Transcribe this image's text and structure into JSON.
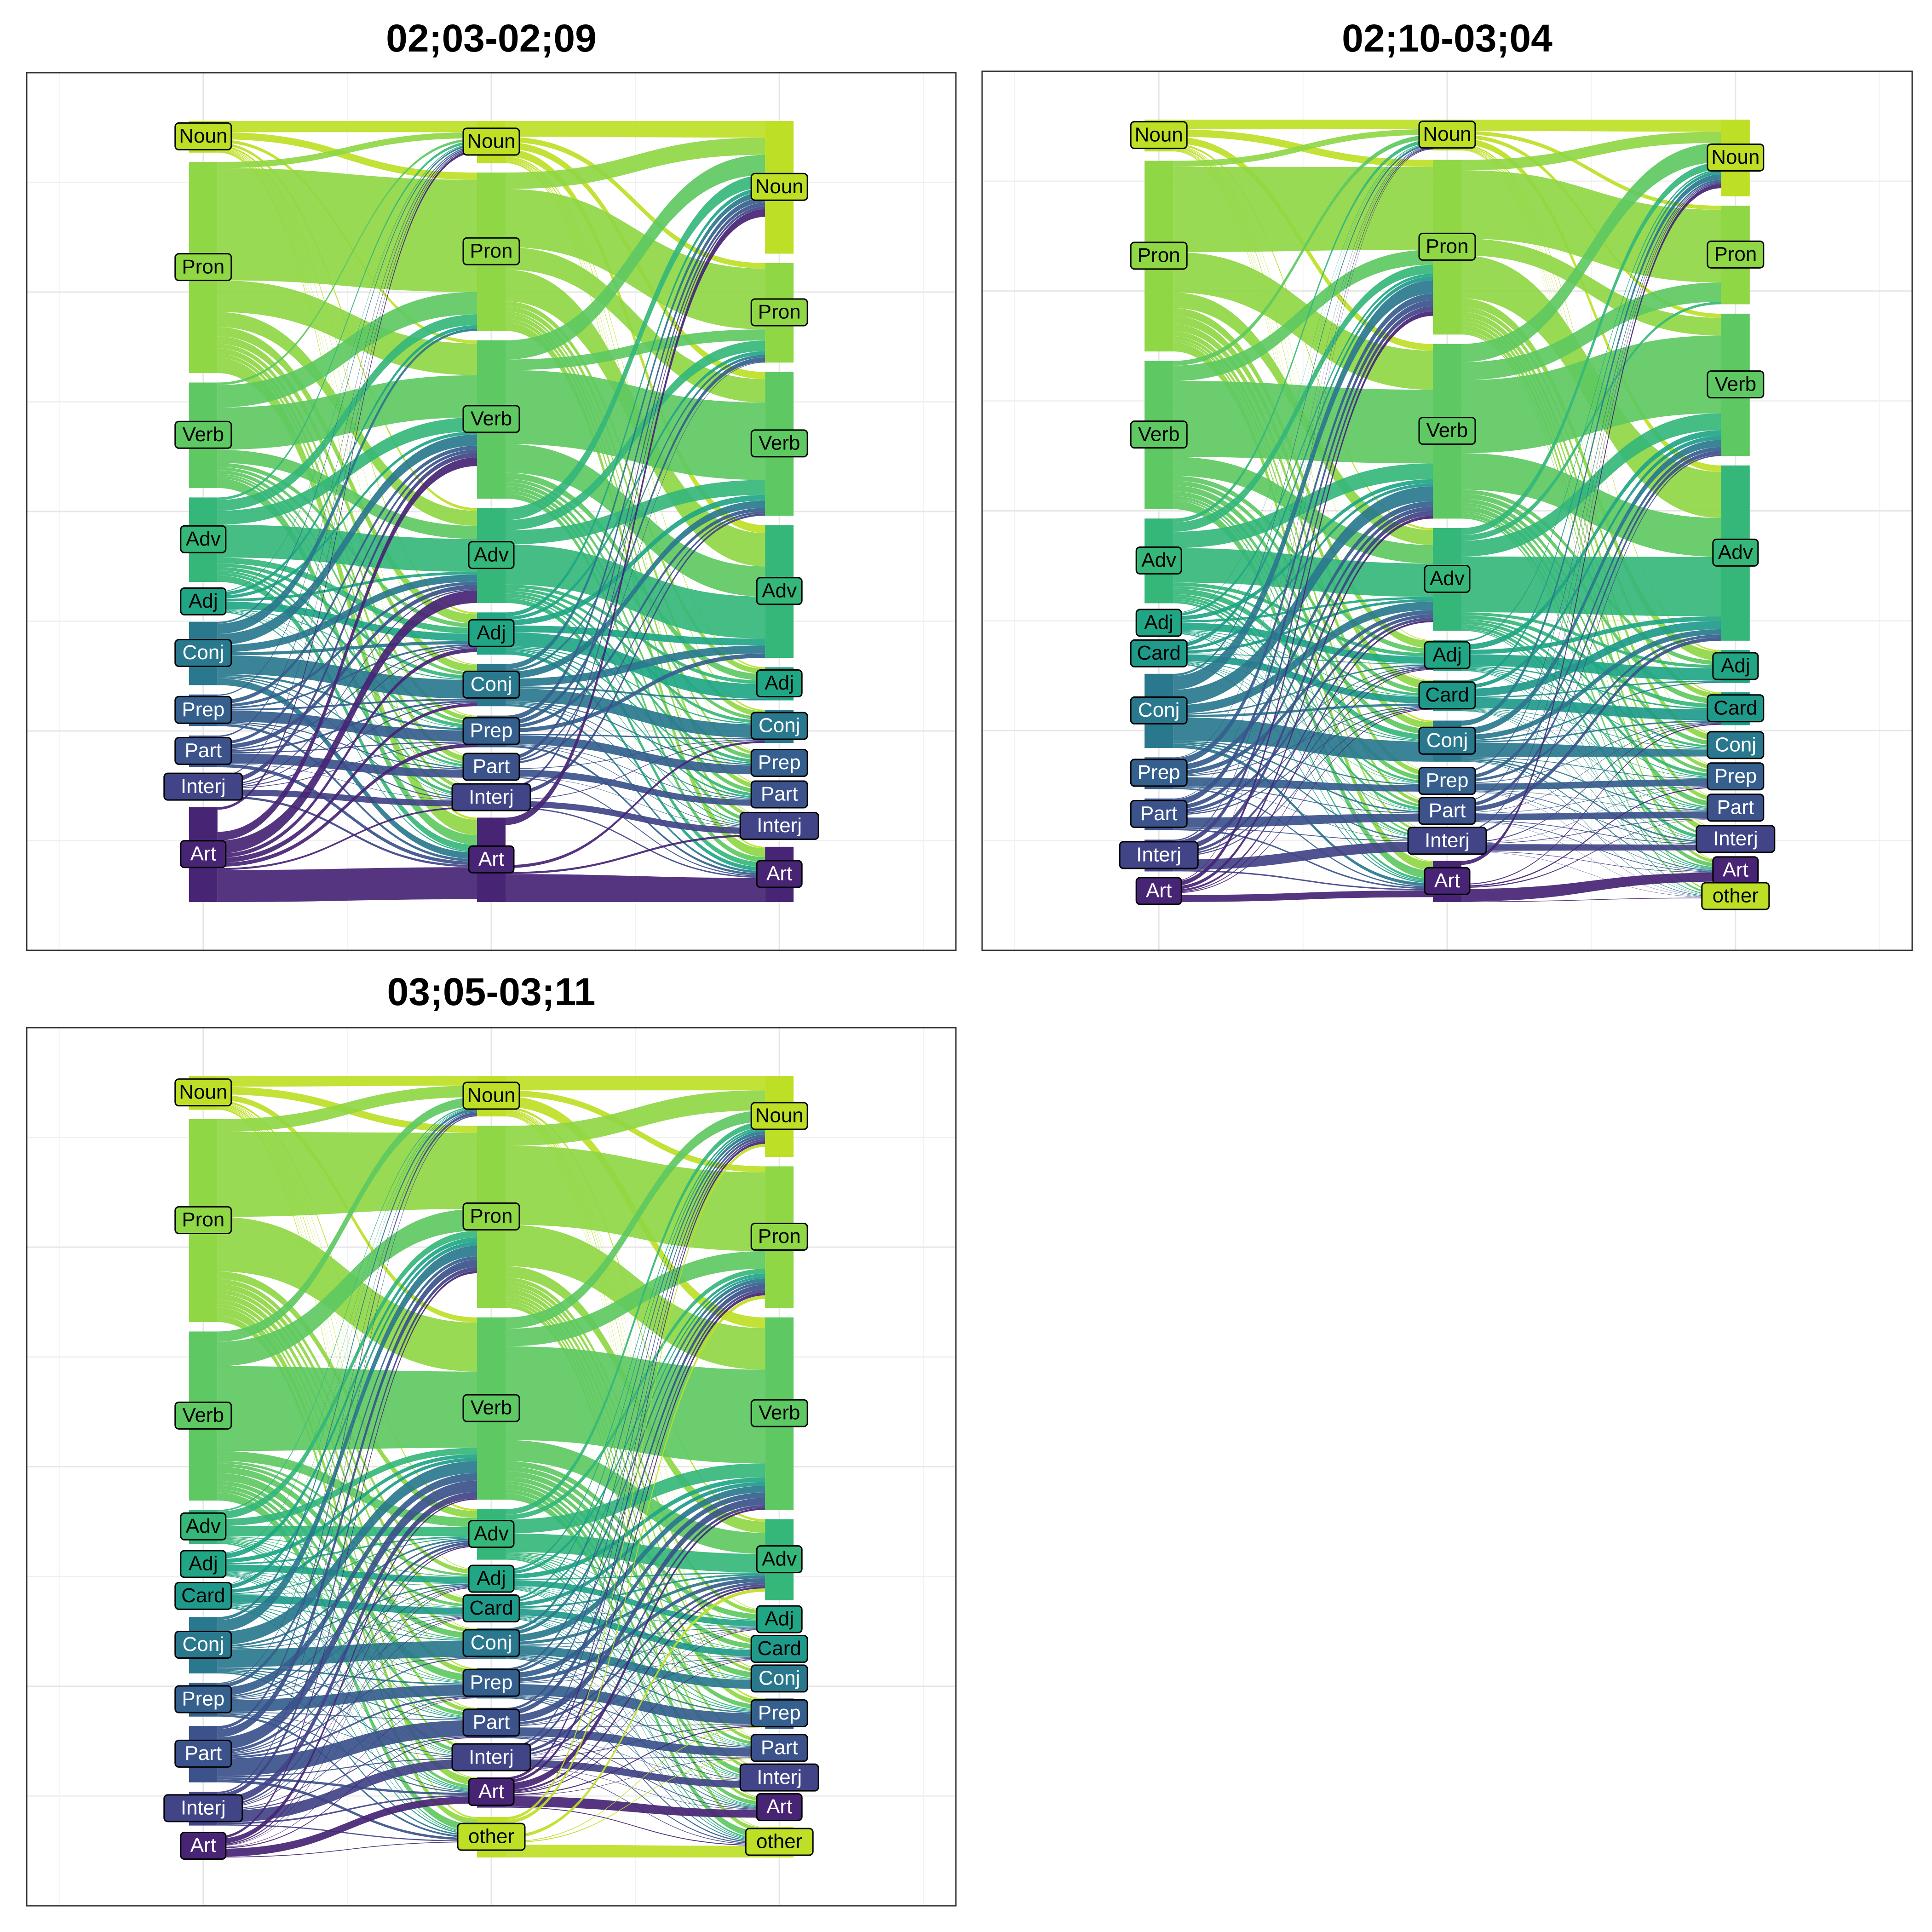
{
  "colors": {
    "Noun": "#bddf26",
    "Pron": "#8fd744",
    "Verb": "#5ec962",
    "Adv": "#35b779",
    "Adj": "#21a685",
    "Card": "#1f9a8a",
    "Conj": "#2a788e",
    "Prep": "#355f8d",
    "Part": "#3b528b",
    "Interj": "#414487",
    "Art": "#482475",
    "other": "#bddf26"
  },
  "chart_data": [
    {
      "type": "alluvial",
      "title": "02;03-02;09",
      "axes": 3,
      "grid": true,
      "nodes": [
        {
          "axis": 1,
          "label": "Noun",
          "size": 3
        },
        {
          "axis": 1,
          "label": "Pron",
          "size": 20
        },
        {
          "axis": 1,
          "label": "Verb",
          "size": 10
        },
        {
          "axis": 1,
          "label": "Adv",
          "size": 8
        },
        {
          "axis": 1,
          "label": "Adj",
          "size": 2
        },
        {
          "axis": 1,
          "label": "Conj",
          "size": 6
        },
        {
          "axis": 1,
          "label": "Prep",
          "size": 3
        },
        {
          "axis": 1,
          "label": "Part",
          "size": 3
        },
        {
          "axis": 1,
          "label": "Interj",
          "size": 2
        },
        {
          "axis": 1,
          "label": "Art",
          "size": 9
        },
        {
          "axis": 2,
          "label": "Noun",
          "size": 4
        },
        {
          "axis": 2,
          "label": "Pron",
          "size": 15
        },
        {
          "axis": 2,
          "label": "Verb",
          "size": 15
        },
        {
          "axis": 2,
          "label": "Adv",
          "size": 9
        },
        {
          "axis": 2,
          "label": "Adj",
          "size": 4
        },
        {
          "axis": 2,
          "label": "Conj",
          "size": 4
        },
        {
          "axis": 2,
          "label": "Prep",
          "size": 3
        },
        {
          "axis": 2,
          "label": "Part",
          "size": 2
        },
        {
          "axis": 2,
          "label": "Interj",
          "size": 2
        },
        {
          "axis": 2,
          "label": "Art",
          "size": 8
        },
        {
          "axis": 3,
          "label": "Noun",
          "size": 12
        },
        {
          "axis": 3,
          "label": "Pron",
          "size": 9
        },
        {
          "axis": 3,
          "label": "Verb",
          "size": 13
        },
        {
          "axis": 3,
          "label": "Adv",
          "size": 12
        },
        {
          "axis": 3,
          "label": "Adj",
          "size": 3
        },
        {
          "axis": 3,
          "label": "Conj",
          "size": 3
        },
        {
          "axis": 3,
          "label": "Prep",
          "size": 2
        },
        {
          "axis": 3,
          "label": "Part",
          "size": 2
        },
        {
          "axis": 3,
          "label": "Interj",
          "size": 2
        },
        {
          "axis": 3,
          "label": "Art",
          "size": 5
        }
      ]
    },
    {
      "type": "alluvial",
      "title": "02;10-03;04",
      "axes": 3,
      "grid": true,
      "nodes": [
        {
          "axis": 1,
          "label": "Noun",
          "size": 3
        },
        {
          "axis": 1,
          "label": "Pron",
          "size": 18
        },
        {
          "axis": 1,
          "label": "Verb",
          "size": 14
        },
        {
          "axis": 1,
          "label": "Adv",
          "size": 8
        },
        {
          "axis": 1,
          "label": "Adj",
          "size": 2
        },
        {
          "axis": 1,
          "label": "Card",
          "size": 2
        },
        {
          "axis": 1,
          "label": "Conj",
          "size": 7
        },
        {
          "axis": 1,
          "label": "Prep",
          "size": 3
        },
        {
          "axis": 1,
          "label": "Part",
          "size": 3
        },
        {
          "axis": 1,
          "label": "Interj",
          "size": 3
        },
        {
          "axis": 1,
          "label": "Art",
          "size": 2
        },
        {
          "axis": 2,
          "label": "Noun",
          "size": 3
        },
        {
          "axis": 2,
          "label": "Pron",
          "size": 17
        },
        {
          "axis": 2,
          "label": "Verb",
          "size": 17
        },
        {
          "axis": 2,
          "label": "Adv",
          "size": 10
        },
        {
          "axis": 2,
          "label": "Adj",
          "size": 3
        },
        {
          "axis": 2,
          "label": "Card",
          "size": 3
        },
        {
          "axis": 2,
          "label": "Conj",
          "size": 4
        },
        {
          "axis": 2,
          "label": "Prep",
          "size": 2
        },
        {
          "axis": 2,
          "label": "Part",
          "size": 2
        },
        {
          "axis": 2,
          "label": "Interj",
          "size": 2
        },
        {
          "axis": 2,
          "label": "Art",
          "size": 4
        },
        {
          "axis": 3,
          "label": "Noun",
          "size": 7
        },
        {
          "axis": 3,
          "label": "Pron",
          "size": 9
        },
        {
          "axis": 3,
          "label": "Verb",
          "size": 13
        },
        {
          "axis": 3,
          "label": "Adv",
          "size": 16
        },
        {
          "axis": 3,
          "label": "Adj",
          "size": 3
        },
        {
          "axis": 3,
          "label": "Card",
          "size": 3
        },
        {
          "axis": 3,
          "label": "Conj",
          "size": 2
        },
        {
          "axis": 3,
          "label": "Prep",
          "size": 2
        },
        {
          "axis": 3,
          "label": "Part",
          "size": 2
        },
        {
          "axis": 3,
          "label": "Interj",
          "size": 2
        },
        {
          "axis": 3,
          "label": "Art",
          "size": 2
        },
        {
          "axis": 3,
          "label": "other",
          "size": 1
        }
      ]
    },
    {
      "type": "alluvial",
      "title": "03;05-03;11",
      "axes": 3,
      "grid": true,
      "nodes": [
        {
          "axis": 1,
          "label": "Noun",
          "size": 3
        },
        {
          "axis": 1,
          "label": "Pron",
          "size": 18
        },
        {
          "axis": 1,
          "label": "Verb",
          "size": 15
        },
        {
          "axis": 1,
          "label": "Adv",
          "size": 3
        },
        {
          "axis": 1,
          "label": "Adj",
          "size": 2
        },
        {
          "axis": 1,
          "label": "Card",
          "size": 2
        },
        {
          "axis": 1,
          "label": "Conj",
          "size": 5
        },
        {
          "axis": 1,
          "label": "Prep",
          "size": 3
        },
        {
          "axis": 1,
          "label": "Part",
          "size": 5
        },
        {
          "axis": 1,
          "label": "Interj",
          "size": 3
        },
        {
          "axis": 1,
          "label": "Art",
          "size": 2
        },
        {
          "axis": 2,
          "label": "Noun",
          "size": 4
        },
        {
          "axis": 2,
          "label": "Pron",
          "size": 18
        },
        {
          "axis": 2,
          "label": "Verb",
          "size": 18
        },
        {
          "axis": 2,
          "label": "Adv",
          "size": 5
        },
        {
          "axis": 2,
          "label": "Adj",
          "size": 2
        },
        {
          "axis": 2,
          "label": "Card",
          "size": 2
        },
        {
          "axis": 2,
          "label": "Conj",
          "size": 3
        },
        {
          "axis": 2,
          "label": "Prep",
          "size": 3
        },
        {
          "axis": 2,
          "label": "Part",
          "size": 3
        },
        {
          "axis": 2,
          "label": "Interj",
          "size": 2
        },
        {
          "axis": 2,
          "label": "Art",
          "size": 3
        },
        {
          "axis": 2,
          "label": "other",
          "size": 4
        },
        {
          "axis": 3,
          "label": "Noun",
          "size": 8
        },
        {
          "axis": 3,
          "label": "Pron",
          "size": 14
        },
        {
          "axis": 3,
          "label": "Verb",
          "size": 19
        },
        {
          "axis": 3,
          "label": "Adv",
          "size": 8
        },
        {
          "axis": 3,
          "label": "Adj",
          "size": 2
        },
        {
          "axis": 3,
          "label": "Card",
          "size": 2
        },
        {
          "axis": 3,
          "label": "Conj",
          "size": 2
        },
        {
          "axis": 3,
          "label": "Prep",
          "size": 3
        },
        {
          "axis": 3,
          "label": "Part",
          "size": 2
        },
        {
          "axis": 3,
          "label": "Interj",
          "size": 2
        },
        {
          "axis": 3,
          "label": "Art",
          "size": 2
        },
        {
          "axis": 3,
          "label": "other",
          "size": 3
        }
      ]
    }
  ]
}
